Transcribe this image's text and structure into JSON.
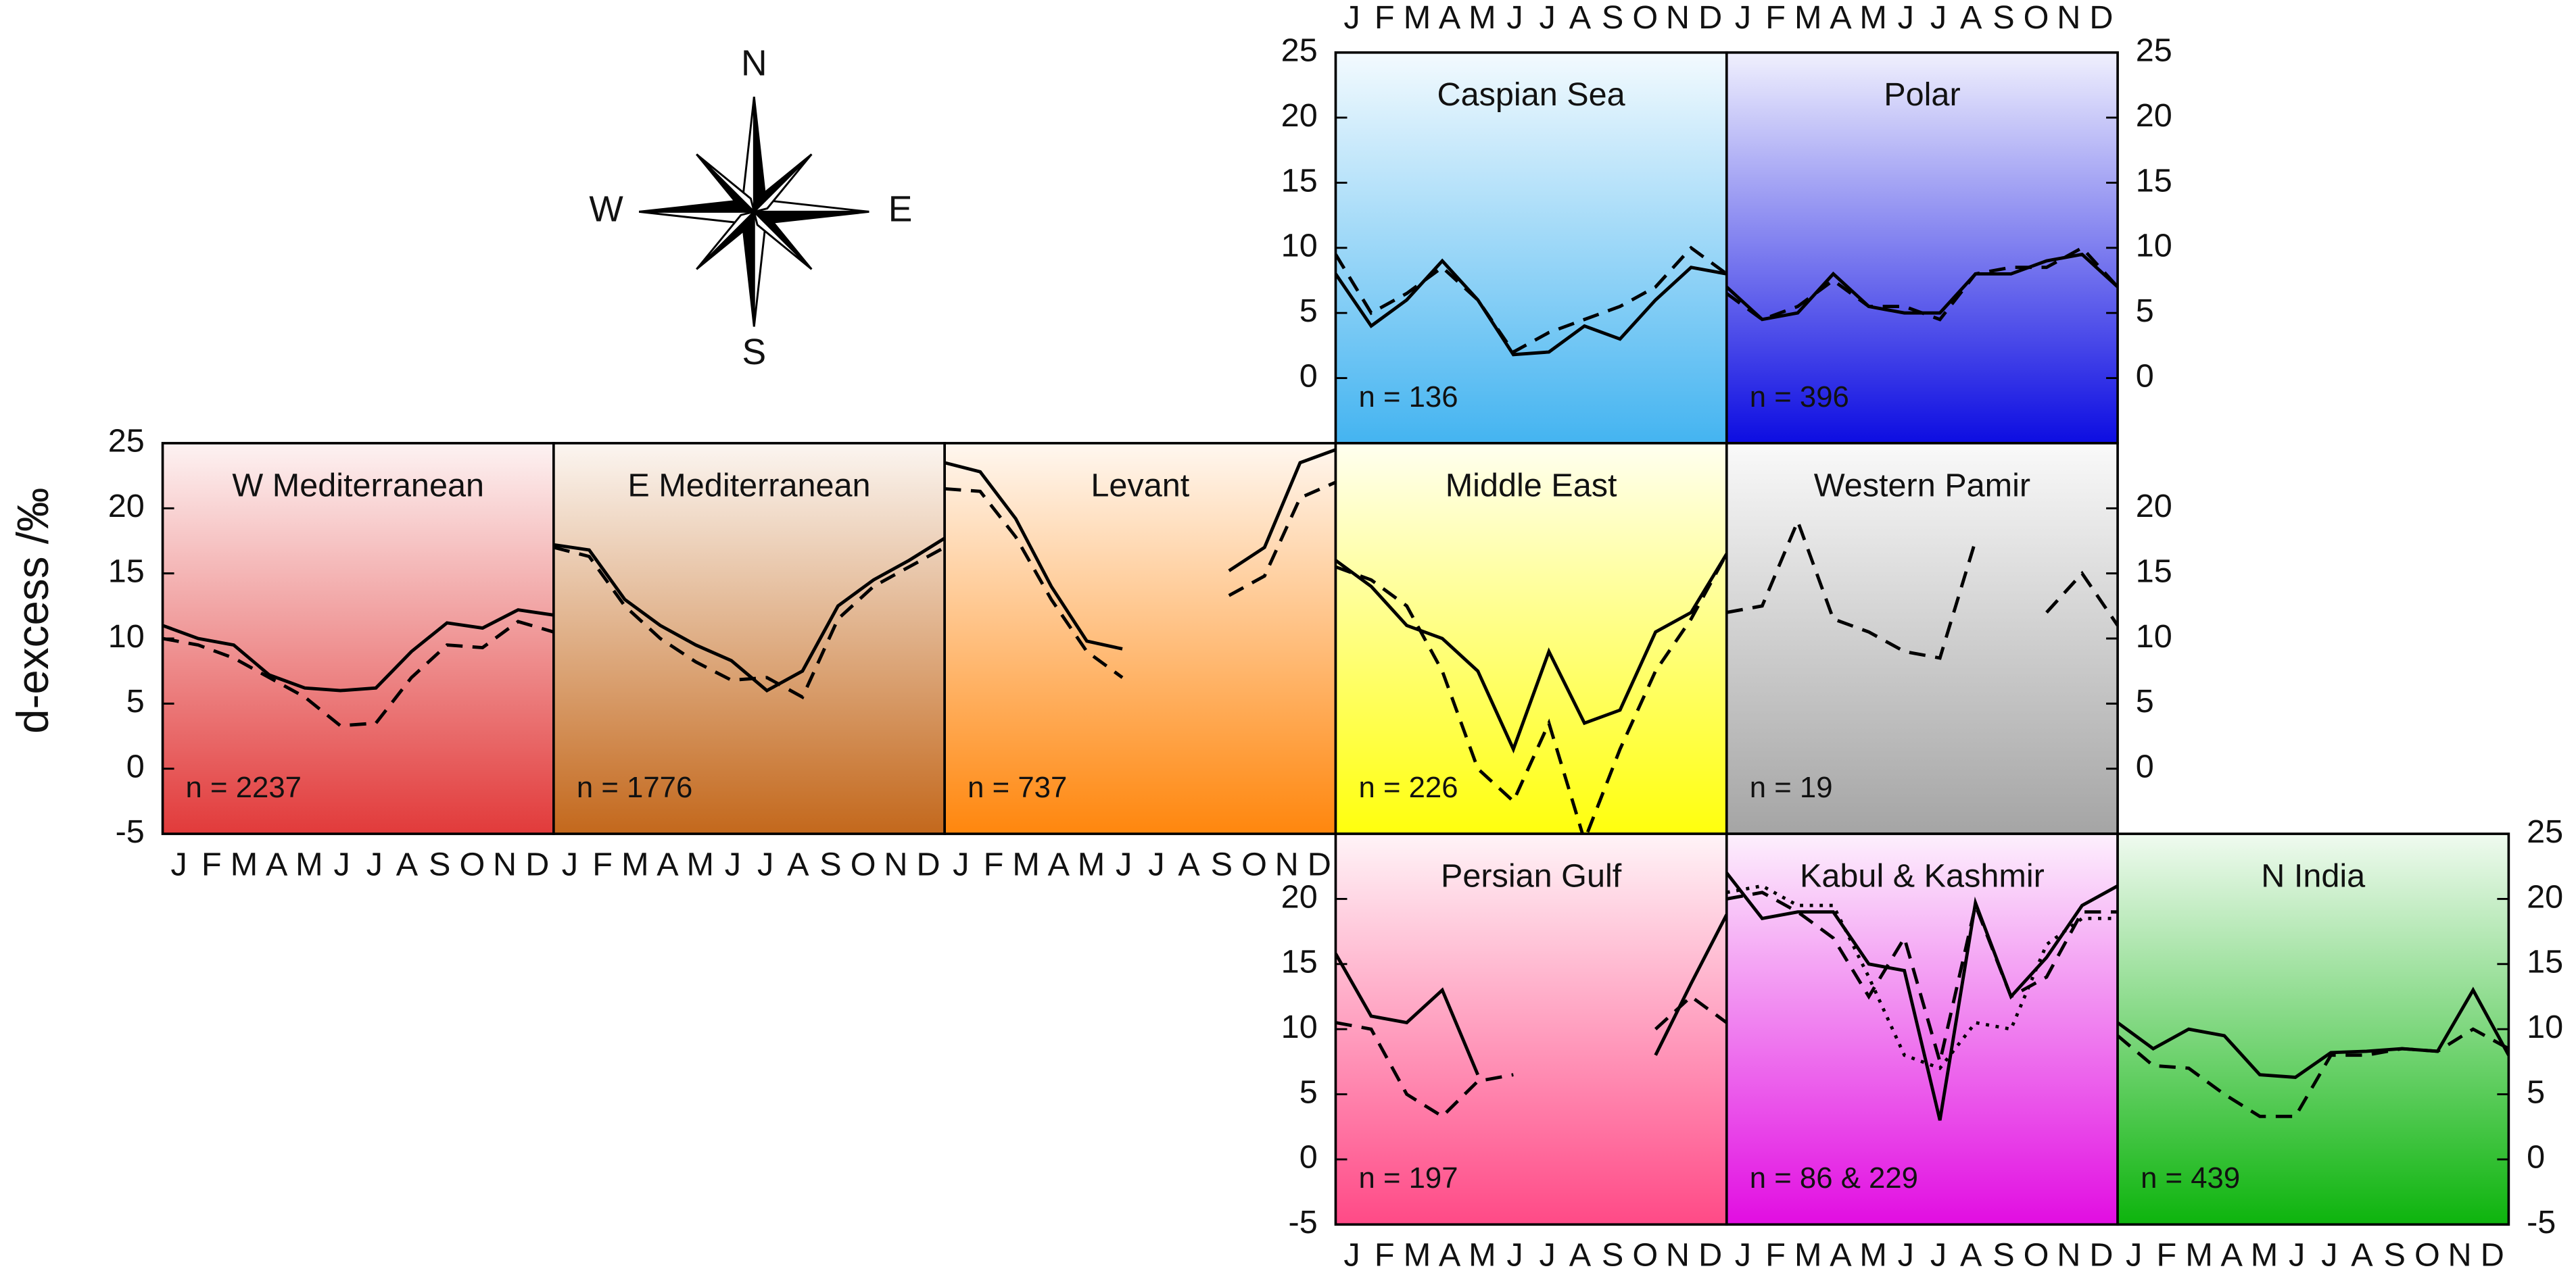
{
  "ylabel": "d-excess /‰",
  "compass": {
    "north": "N",
    "east": "E",
    "south": "S",
    "west": "W"
  },
  "chart_data": [
    {
      "type": "line",
      "title": "Caspian Sea",
      "annotation": "n = 136",
      "color": "#3ab0f0",
      "categories": [
        "J",
        "F",
        "M",
        "A",
        "M",
        "J",
        "J",
        "A",
        "S",
        "O",
        "N",
        "D"
      ],
      "xtick_side": "top",
      "ylim": [
        -5,
        25
      ],
      "yticks": [
        0,
        5,
        10,
        15,
        20,
        25
      ],
      "ytick_side": "left",
      "series": [
        {
          "style": "solid",
          "values": [
            8,
            4,
            6,
            9,
            6,
            1.8,
            2,
            4,
            3,
            6,
            8.5,
            8
          ]
        },
        {
          "style": "dashed",
          "values": [
            9.5,
            5,
            6.5,
            8.5,
            6,
            2,
            3.5,
            4.5,
            5.5,
            7,
            10,
            8
          ]
        }
      ]
    },
    {
      "type": "line",
      "title": "Polar",
      "annotation": "n = 396",
      "color": "#0000e0",
      "categories": [
        "J",
        "F",
        "M",
        "A",
        "M",
        "J",
        "J",
        "A",
        "S",
        "O",
        "N",
        "D"
      ],
      "xtick_side": "top",
      "ylim": [
        -5,
        25
      ],
      "yticks": [
        0,
        5,
        10,
        15,
        20,
        25
      ],
      "ytick_side": "right",
      "series": [
        {
          "style": "solid",
          "values": [
            7,
            4.5,
            5,
            8,
            5.5,
            5,
            5,
            8,
            8,
            9,
            9.5,
            7
          ]
        },
        {
          "style": "dashed",
          "values": [
            6.5,
            4.5,
            5.5,
            7.5,
            5.5,
            5.5,
            4.5,
            8,
            8.5,
            8.5,
            10,
            7
          ]
        }
      ]
    },
    {
      "type": "line",
      "title": "W Mediterranean",
      "annotation": "n = 2237",
      "color": "#e03030",
      "categories": [
        "J",
        "F",
        "M",
        "A",
        "M",
        "J",
        "J",
        "A",
        "S",
        "O",
        "N",
        "D"
      ],
      "xtick_side": "bottom",
      "ylim": [
        -5,
        25
      ],
      "yticks": [
        -5,
        0,
        5,
        10,
        15,
        20,
        25
      ],
      "ytick_side": "left",
      "series": [
        {
          "style": "solid",
          "values": [
            11,
            10,
            9.5,
            7.2,
            6.2,
            6,
            6.2,
            9,
            11.2,
            10.8,
            12.2,
            11.8
          ]
        },
        {
          "style": "dashed",
          "values": [
            10,
            9.5,
            8.5,
            7,
            5.5,
            3.3,
            3.5,
            7,
            9.5,
            9.3,
            11.3,
            10.5
          ]
        }
      ]
    },
    {
      "type": "line",
      "title": "E Mediterranean",
      "annotation": "n = 1776",
      "color": "#c06010",
      "categories": [
        "J",
        "F",
        "M",
        "A",
        "M",
        "J",
        "J",
        "A",
        "S",
        "O",
        "N",
        "D"
      ],
      "xtick_side": "bottom",
      "ylim": [
        -5,
        25
      ],
      "series": [
        {
          "style": "solid",
          "values": [
            17.2,
            16.8,
            13,
            11,
            9.5,
            8.3,
            6,
            7.5,
            12.5,
            14.5,
            16,
            17.7
          ]
        },
        {
          "style": "dashed",
          "values": [
            17,
            16.3,
            12.5,
            10,
            8.2,
            6.8,
            7,
            5.5,
            11.5,
            14,
            15.5,
            17
          ]
        }
      ]
    },
    {
      "type": "line",
      "title": "Levant",
      "annotation": "n = 737",
      "color": "#ff8000",
      "categories": [
        "J",
        "F",
        "M",
        "A",
        "M",
        "J",
        "J",
        "A",
        "S",
        "O",
        "N",
        "D"
      ],
      "xtick_side": "bottom",
      "ylim": [
        -5,
        25
      ],
      "series": [
        {
          "style": "solid",
          "values": [
            23.5,
            22.8,
            19.2,
            14,
            9.8,
            9.2,
            null,
            null,
            15.2,
            17,
            23.5,
            24.5
          ]
        },
        {
          "style": "dashed",
          "values": [
            21.5,
            21.3,
            17.8,
            13,
            9,
            7,
            null,
            null,
            13.3,
            14.8,
            20.8,
            22
          ]
        }
      ]
    },
    {
      "type": "line",
      "title": "Middle East",
      "annotation": "n = 226",
      "color": "#ffff00",
      "ylim": [
        -5,
        25
      ],
      "series": [
        {
          "style": "solid",
          "values": [
            16,
            14,
            11,
            10,
            7.5,
            1.5,
            9,
            3.5,
            4.5,
            10.5,
            12,
            16.5
          ]
        },
        {
          "style": "dashed",
          "values": [
            15.5,
            14.5,
            12.5,
            7.5,
            0,
            -2.5,
            3.5,
            -5.5,
            1.5,
            7.5,
            11.5,
            16.5
          ]
        }
      ]
    },
    {
      "type": "line",
      "title": "Western Pamir",
      "annotation": "n = 19",
      "color": "#a0a0a0",
      "ylim": [
        -5,
        25
      ],
      "yticks": [
        0,
        5,
        10,
        15,
        20
      ],
      "ytick_side": "right",
      "series": [
        {
          "style": "dashed",
          "values": [
            12,
            12.5,
            19,
            11.5,
            10.5,
            9,
            8.5,
            17.5,
            null,
            12,
            15,
            11
          ]
        }
      ]
    },
    {
      "type": "line",
      "title": "Persian Gulf",
      "annotation": "n = 197",
      "color": "#ff4080",
      "categories": [
        "J",
        "F",
        "M",
        "A",
        "M",
        "J",
        "J",
        "A",
        "S",
        "O",
        "N",
        "D"
      ],
      "xtick_side": "bottom",
      "ylim": [
        -5,
        25
      ],
      "yticks": [
        -5,
        0,
        5,
        10,
        15,
        20
      ],
      "ytick_side": "left",
      "series": [
        {
          "style": "solid",
          "values": [
            15.8,
            11,
            10.5,
            13,
            6.5,
            null,
            null,
            null,
            null,
            8,
            13.5,
            18.8
          ]
        },
        {
          "style": "dashed",
          "values": [
            10.5,
            10,
            5,
            3.3,
            6,
            6.5,
            null,
            null,
            null,
            10,
            12.5,
            10.5
          ]
        }
      ]
    },
    {
      "type": "line",
      "title": "Kabul & Kashmir",
      "annotation": "n = 86 & 229",
      "color": "#e000e0",
      "categories": [
        "J",
        "F",
        "M",
        "A",
        "M",
        "J",
        "J",
        "A",
        "S",
        "O",
        "N",
        "D"
      ],
      "xtick_side": "bottom",
      "ylim": [
        -5,
        25
      ],
      "series": [
        {
          "style": "solid",
          "values": [
            22,
            18.5,
            19,
            19,
            15,
            14.5,
            3,
            19.7,
            12.5,
            15.5,
            19.5,
            21
          ]
        },
        {
          "style": "dashed",
          "values": [
            20,
            20.5,
            19,
            17,
            12.5,
            17,
            7.5,
            19.5,
            12.5,
            14,
            19,
            19
          ]
        },
        {
          "style": "dotted",
          "values": [
            20.5,
            21,
            19.5,
            19.5,
            14,
            8,
            7,
            10.5,
            10,
            16.5,
            18.5,
            18.5
          ]
        }
      ]
    },
    {
      "type": "line",
      "title": "N India",
      "annotation": "n = 439",
      "color": "#00b000",
      "categories": [
        "J",
        "F",
        "M",
        "A",
        "M",
        "J",
        "J",
        "A",
        "S",
        "O",
        "N",
        "D"
      ],
      "xtick_side": "bottom",
      "ylim": [
        -5,
        25
      ],
      "yticks": [
        -5,
        0,
        5,
        10,
        15,
        20,
        25
      ],
      "ytick_side": "right",
      "series": [
        {
          "style": "solid",
          "values": [
            10.5,
            8.5,
            10,
            9.5,
            6.5,
            6.3,
            8.2,
            8.3,
            8.5,
            8.3,
            13,
            8
          ]
        },
        {
          "style": "dashed",
          "values": [
            9.5,
            7.2,
            7,
            5,
            3.3,
            3.3,
            8,
            8,
            8.5,
            8.3,
            10,
            8.5
          ]
        }
      ]
    }
  ]
}
